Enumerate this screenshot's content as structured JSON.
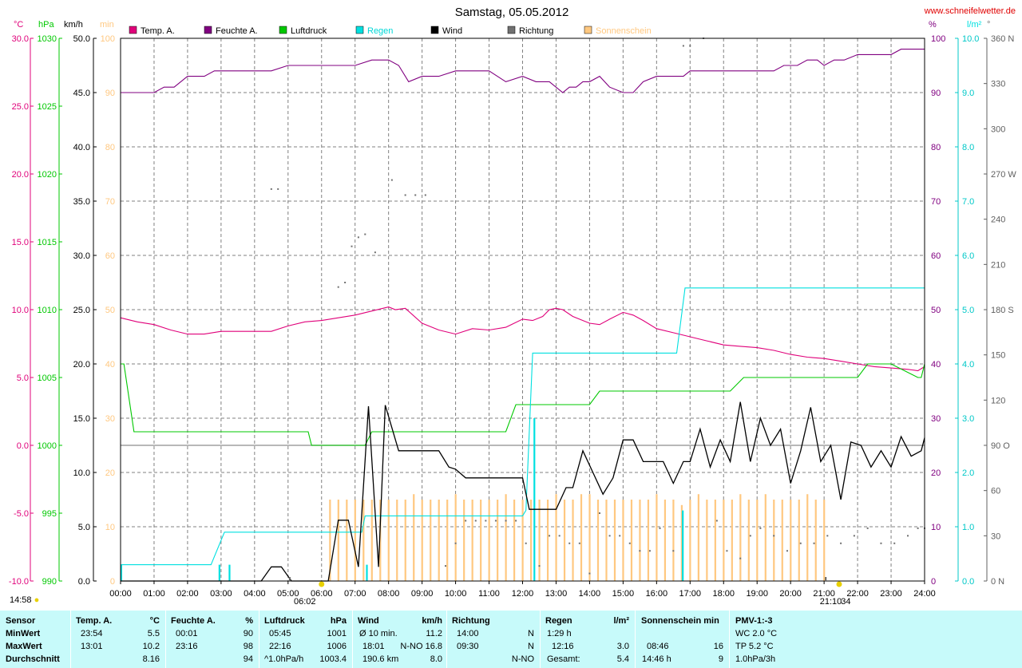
{
  "title": "Samstag, 05.05.2012",
  "site": "www.schneifelwetter.de",
  "colors": {
    "temp": "#e0007a",
    "humidity": "#800080",
    "pressure": "#00c800",
    "rain": "#00e0e0",
    "wind": "#000000",
    "direction": "#707070",
    "sun": "#ffc880",
    "grid": "#808080",
    "panel": "#c7fafa"
  },
  "legend": [
    {
      "label": "Temp. A.",
      "color": "#e0007a"
    },
    {
      "label": "Feuchte A.",
      "color": "#800080"
    },
    {
      "label": "Luftdruck",
      "color": "#00c800"
    },
    {
      "label": "Regen",
      "color": "#00e0e0"
    },
    {
      "label": "Wind",
      "color": "#000000"
    },
    {
      "label": "Richtung",
      "color": "#707070"
    },
    {
      "label": "Sonnenschein",
      "color": "#ffc880"
    }
  ],
  "axis_units": {
    "temp": "°C",
    "pressure": "hPa",
    "wind": "km/h",
    "sun": "min",
    "humidity": "%",
    "rain": "l/m²",
    "direction": "°"
  },
  "bottom_left_time": "14:58",
  "sun_markers": {
    "sunrise": "06:02",
    "sunset": "21:10",
    "sunset_suffix": "34"
  },
  "chart_data": {
    "type": "line",
    "x_labels": [
      "00:00",
      "01:00",
      "02:00",
      "03:00",
      "04:00",
      "05:00",
      "06:00",
      "07:00",
      "08:00",
      "09:00",
      "10:00",
      "11:00",
      "12:00",
      "13:00",
      "14:00",
      "15:00",
      "16:00",
      "17:00",
      "18:00",
      "19:00",
      "20:00",
      "21:00",
      "22:00",
      "23:00",
      "24:00"
    ],
    "xlim": [
      0,
      24
    ],
    "axes": {
      "temp": {
        "ticks": [
          "30.0",
          "25.0",
          "20.0",
          "15.0",
          "10.0",
          "5.0",
          "0.0",
          "-5.0",
          "-10.0"
        ],
        "ylim": [
          -10,
          30
        ]
      },
      "pressure": {
        "ticks": [
          "1030",
          "1025",
          "1020",
          "1015",
          "1010",
          "1005",
          "1000",
          "995",
          "990"
        ],
        "ylim": [
          990,
          1030
        ]
      },
      "wind": {
        "ticks": [
          "50.0",
          "45.0",
          "40.0",
          "35.0",
          "30.0",
          "25.0",
          "20.0",
          "15.0",
          "10.0",
          "5.0",
          "0.0"
        ],
        "ylim": [
          0,
          50
        ]
      },
      "sun": {
        "ticks": [
          "100",
          "90",
          "80",
          "70",
          "60",
          "50",
          "40",
          "30",
          "20",
          "10",
          "0"
        ],
        "ylim": [
          0,
          100
        ]
      },
      "humidity": {
        "ticks": [
          "100",
          "90",
          "80",
          "70",
          "60",
          "50",
          "40",
          "30",
          "20",
          "10",
          "0"
        ],
        "ylim": [
          0,
          100
        ]
      },
      "rain": {
        "ticks": [
          "10.0",
          "9.0",
          "8.0",
          "7.0",
          "6.0",
          "5.0",
          "4.0",
          "3.0",
          "2.0",
          "1.0",
          "0.0"
        ],
        "ylim": [
          0,
          10
        ]
      },
      "direction": {
        "ticks": [
          "360 N",
          "330",
          "300",
          "270 W",
          "240",
          "210",
          "180 S",
          "150",
          "120",
          "90 O",
          "60",
          "30",
          "0 N"
        ],
        "ylim": [
          0,
          360
        ]
      }
    },
    "series": [
      {
        "name": "Feuchte A.",
        "axis": "humidity",
        "color": "#800080",
        "x": [
          0,
          0.6,
          1,
          1.3,
          1.6,
          2,
          2.5,
          2.8,
          3.2,
          4,
          4.5,
          5,
          5.5,
          6,
          6.5,
          7,
          7.5,
          8,
          8.3,
          8.6,
          9,
          9.5,
          10,
          10.5,
          11,
          11.5,
          12,
          12.4,
          12.8,
          13.2,
          13.4,
          13.6,
          13.8,
          14,
          14.3,
          14.6,
          15,
          15.3,
          15.6,
          16,
          16.5,
          16.8,
          17,
          17.5,
          18,
          18.5,
          19,
          19.5,
          19.8,
          20.2,
          20.5,
          20.8,
          21,
          21.3,
          21.6,
          22,
          22.5,
          23,
          23.3,
          23.6,
          24
        ],
        "y": [
          90,
          90,
          90,
          91,
          91,
          93,
          93,
          94,
          94,
          94,
          94,
          95,
          95,
          95,
          95,
          95,
          96,
          96,
          95,
          92,
          93,
          93,
          94,
          94,
          94,
          92,
          93,
          92,
          92,
          90,
          91,
          91,
          92,
          92,
          93,
          91,
          90,
          90,
          92,
          93,
          93,
          93,
          94,
          94,
          94,
          94,
          94,
          94,
          95,
          95,
          96,
          96,
          95,
          96,
          96,
          97,
          97,
          97,
          98,
          98,
          98
        ]
      },
      {
        "name": "Temp. A.",
        "axis": "temp",
        "color": "#e0007a",
        "x": [
          0,
          0.5,
          1,
          1.5,
          2,
          2.5,
          3,
          3.5,
          4,
          4.5,
          5,
          5.5,
          6,
          6.5,
          7,
          7.5,
          8,
          8.2,
          8.5,
          9,
          9.5,
          10,
          10.5,
          11,
          11.5,
          12,
          12.3,
          12.6,
          12.8,
          13,
          13.2,
          13.5,
          14,
          14.3,
          14.6,
          15,
          15.3,
          15.6,
          16,
          16.5,
          17,
          17.5,
          18,
          18.5,
          19,
          19.5,
          20,
          20.5,
          21,
          21.5,
          22,
          22.5,
          23,
          23.5,
          23.8,
          24
        ],
        "y": [
          9.4,
          9.1,
          8.9,
          8.5,
          8.2,
          8.2,
          8.4,
          8.4,
          8.4,
          8.4,
          8.8,
          9.1,
          9.2,
          9.4,
          9.6,
          9.9,
          10.2,
          10.0,
          10.1,
          9.0,
          8.5,
          8.2,
          8.6,
          8.5,
          8.7,
          9.3,
          9.2,
          9.5,
          10.0,
          10.1,
          10.0,
          9.5,
          9.0,
          8.9,
          9.3,
          9.8,
          9.6,
          9.2,
          8.6,
          8.3,
          8.0,
          7.7,
          7.4,
          7.3,
          7.2,
          7.0,
          6.7,
          6.5,
          6.4,
          6.2,
          6.0,
          5.8,
          5.7,
          5.6,
          5.5,
          5.8
        ]
      },
      {
        "name": "Luftdruck",
        "axis": "pressure",
        "color": "#00c800",
        "x": [
          0,
          0.1,
          0.4,
          1,
          2,
          3,
          4,
          5,
          5.6,
          5.7,
          6,
          7,
          7.3,
          7.5,
          8,
          9,
          10,
          11,
          11.5,
          11.8,
          12,
          12.5,
          13,
          13.5,
          14,
          14.3,
          15,
          16,
          17,
          18,
          18.2,
          18.6,
          19,
          20,
          21,
          22,
          22.3,
          23,
          23.8,
          23.9,
          24
        ],
        "y": [
          1006,
          1006,
          1001,
          1001,
          1001,
          1001,
          1001,
          1001,
          1001,
          1000,
          1000,
          1000,
          1000,
          1001,
          1001,
          1001,
          1001,
          1001,
          1001,
          1003,
          1003,
          1003,
          1003,
          1003,
          1003,
          1004,
          1004,
          1004,
          1004,
          1004,
          1004,
          1005,
          1005,
          1005,
          1005,
          1005,
          1006,
          1006,
          1005,
          1005,
          1006
        ]
      },
      {
        "name": "Regen",
        "axis": "rain",
        "color": "#00e0e0",
        "x": [
          0,
          2.7,
          3.1,
          4,
          5,
          6,
          7,
          7.2,
          7.3,
          7.6,
          8,
          9,
          10,
          11,
          12,
          12.1,
          12.3,
          13,
          14,
          15,
          16,
          16.6,
          16.85,
          17,
          18,
          19,
          20,
          21,
          22,
          23,
          24
        ],
        "y": [
          0.3,
          0.3,
          0.9,
          0.9,
          0.9,
          0.9,
          0.9,
          0.9,
          1.2,
          1.2,
          1.2,
          1.2,
          1.2,
          1.2,
          1.2,
          1.3,
          4.2,
          4.2,
          4.2,
          4.2,
          4.2,
          4.2,
          5.4,
          5.4,
          5.4,
          5.4,
          5.4,
          5.4,
          5.4,
          5.4,
          5.4
        ]
      },
      {
        "name": "Wind",
        "axis": "wind",
        "color": "#000000",
        "x": [
          0,
          4.2,
          4.5,
          4.8,
          5.1,
          5.4,
          5.7,
          6,
          6.2,
          6.5,
          6.8,
          7.1,
          7.4,
          7.7,
          7.9,
          8.3,
          8.6,
          9,
          9.5,
          9.8,
          10,
          10.3,
          10.8,
          11,
          11.5,
          12,
          12.2,
          12.5,
          12.8,
          13,
          13.3,
          13.5,
          13.8,
          14.1,
          14.4,
          14.7,
          15,
          15.3,
          15.6,
          15.9,
          16.2,
          16.5,
          16.8,
          17,
          17.3,
          17.6,
          17.9,
          18.2,
          18.5,
          18.8,
          19.1,
          19.4,
          19.7,
          20,
          20.3,
          20.6,
          20.9,
          21.2,
          21.5,
          21.8,
          22.1,
          22.4,
          22.7,
          23,
          23.3,
          23.6,
          23.9,
          24
        ],
        "y": [
          0,
          0,
          1.3,
          1.3,
          0,
          0,
          0,
          0,
          0,
          5.6,
          5.6,
          1.3,
          16.1,
          1.3,
          16.2,
          12,
          12,
          12,
          12,
          10.5,
          10.3,
          9.5,
          9.5,
          9.5,
          9.5,
          9.5,
          6.6,
          6.6,
          6.6,
          6.6,
          8.6,
          8.6,
          12,
          10,
          8,
          9.5,
          13,
          13,
          11,
          11,
          11,
          9,
          11,
          11,
          14,
          10.5,
          13,
          11,
          16.5,
          11,
          15,
          12.5,
          14,
          9,
          12,
          16,
          11,
          12.5,
          7.5,
          12.8,
          12.5,
          10.5,
          12,
          10.5,
          13.3,
          11.5,
          12,
          13.2
        ]
      }
    ],
    "bars": [
      {
        "name": "Sonnenschein",
        "axis": "sun",
        "color": "#ffc880",
        "x": [
          6.25,
          6.5,
          6.75,
          7.0,
          7.25,
          7.5,
          7.75,
          8.0,
          8.25,
          8.5,
          8.75,
          9.0,
          9.25,
          9.5,
          9.75,
          10.0,
          10.25,
          10.5,
          10.75,
          11.0,
          11.25,
          11.5,
          11.75,
          12.0,
          12.25,
          12.5,
          12.75,
          13.0,
          13.25,
          13.5,
          13.75,
          14.0,
          14.25,
          14.5,
          14.75,
          15.0,
          15.25,
          15.5,
          15.75,
          16.0,
          16.25,
          16.5,
          16.75,
          17.0,
          17.25,
          17.5,
          17.75,
          18.0,
          18.25,
          18.5,
          18.75,
          19.0,
          19.25,
          19.5,
          19.75,
          20.0,
          20.25,
          20.5,
          20.75,
          21.0
        ],
        "y": [
          15,
          15,
          15,
          15,
          15,
          15,
          15,
          15,
          15,
          15,
          16,
          15,
          15,
          15,
          15,
          16,
          15,
          15,
          15,
          15,
          15,
          16,
          15,
          15,
          15,
          15,
          15,
          16,
          15,
          15,
          16,
          16,
          15,
          15,
          15,
          15,
          15,
          15,
          15,
          16,
          15,
          15,
          14,
          15,
          16,
          15,
          15,
          15,
          15,
          16,
          15,
          15,
          16,
          15,
          15,
          15,
          15,
          16,
          15,
          15
        ]
      },
      {
        "name": "Regen 10 min",
        "axis": "rain",
        "color": "#00e0e0",
        "x": [
          0.02,
          2.95,
          3.25,
          7.35,
          12.35,
          16.78
        ],
        "y": [
          0.3,
          0.3,
          0.3,
          0.3,
          3.0,
          1.3
        ]
      }
    ],
    "direction_points": {
      "axis": "direction",
      "color": "#707070",
      "x": [
        4.5,
        4.7,
        6.5,
        6.7,
        6.9,
        7.1,
        7.3,
        7.6,
        8.1,
        8.5,
        8.8,
        9.1,
        9.7,
        10.0,
        10.3,
        10.6,
        10.9,
        11.2,
        11.5,
        11.8,
        12.1,
        12.5,
        12.8,
        13.1,
        13.4,
        13.7,
        14.0,
        14.3,
        14.6,
        14.9,
        15.2,
        15.5,
        15.8,
        16.1,
        16.5,
        16.8,
        17.0,
        17.4,
        17.8,
        18.1,
        18.5,
        18.8,
        19.1,
        19.5,
        19.9,
        20.3,
        20.7,
        21.1,
        21.5,
        21.9,
        22.3,
        22.7,
        23.1,
        23.5,
        23.8,
        24
      ],
      "y": [
        260,
        260,
        195,
        198,
        222,
        228,
        230,
        218,
        266,
        256,
        256,
        256,
        10,
        25,
        40,
        40,
        40,
        40,
        40,
        40,
        25,
        10,
        30,
        30,
        25,
        25,
        5,
        45,
        30,
        30,
        25,
        20,
        20,
        35,
        20,
        355,
        355,
        360,
        40,
        20,
        15,
        30,
        35,
        30,
        20,
        25,
        25,
        30,
        25,
        30,
        35,
        25,
        25,
        30,
        35,
        35
      ]
    },
    "reference_line": {
      "axis": "temp",
      "y": 0
    }
  },
  "stats": {
    "sensor": {
      "header": "Sensor",
      "rows": [
        "MinWert",
        "MaxWert",
        "Durchschnitt"
      ]
    },
    "temp": {
      "header": "Temp. A.",
      "unit": "°C",
      "min_time": "23:54",
      "min": "5.5",
      "max_time": "13:01",
      "max": "10.2",
      "avg": "8.16"
    },
    "humidity": {
      "header": "Feuchte A.",
      "unit": "%",
      "min_time": "00:01",
      "min": "90",
      "max_time": "23:16",
      "max": "98",
      "avg": "94"
    },
    "pressure": {
      "header": "Luftdruck",
      "unit": "hPa",
      "min_time": "05:45",
      "min": "1001",
      "max_time": "22:16",
      "max": "1006",
      "trend": "^1.0hPa/h",
      "avg": "1003.4"
    },
    "wind": {
      "header": "Wind",
      "unit": "km/h",
      "r1_label": "Ø 10 min.",
      "r1_val": "11.2",
      "r2_time": "18:01",
      "r2_val": "N-NO 16.8",
      "r3_label": "190.6 km",
      "r3_val": "8.0"
    },
    "direction": {
      "header": "Richtung",
      "r1_time": "14:00",
      "r1_val": "N",
      "r2_time": "09:30",
      "r2_val": "N",
      "r3_val": "N-NO"
    },
    "rain": {
      "header": "Regen",
      "unit": "l/m²",
      "r1": "1:29 h",
      "r2_time": "12:16",
      "r2_val": "3.0",
      "r3_label": "Gesamt:",
      "r3_val": "5.4"
    },
    "sun": {
      "header": "Sonnenschein min",
      "r2_time": "08:46",
      "r2_val": "16",
      "r3_time": "14:46 h",
      "r3_val": "9"
    },
    "pmv": {
      "header": "PMV-1:-3",
      "r1": "WC 2.0 °C",
      "r2": "TP 5.2 °C",
      "r3": "1.0hPa/3h"
    }
  }
}
